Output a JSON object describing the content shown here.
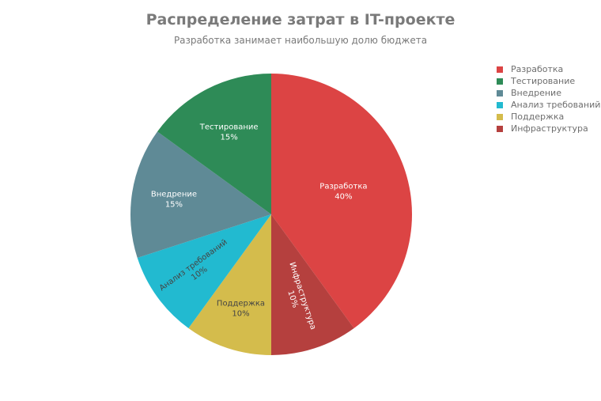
{
  "chart_data": {
    "type": "pie",
    "title": "Распределение затрат в IT-проекте",
    "subtitle": "Разработка занимает наибольшую долю бюджета",
    "legend_position": "top-right",
    "slices": [
      {
        "label": "Разработка",
        "value": 40,
        "percent_label": "40%",
        "color": "#dc4444",
        "text_color": "#ffffff"
      },
      {
        "label": "Инфраструктура",
        "value": 10,
        "percent_label": "10%",
        "color": "#b5403e",
        "text_color": "#ffffff"
      },
      {
        "label": "Поддержка",
        "value": 10,
        "percent_label": "10%",
        "color": "#d4bc4c",
        "text_color": "#444444"
      },
      {
        "label": "Анализ требований",
        "value": 10,
        "percent_label": "10%",
        "color": "#22bad0",
        "text_color": "#444444"
      },
      {
        "label": "Внедрение",
        "value": 15,
        "percent_label": "15%",
        "color": "#5f8a96",
        "text_color": "#ffffff"
      },
      {
        "label": "Тестирование",
        "value": 15,
        "percent_label": "15%",
        "color": "#2e8b57",
        "text_color": "#ffffff"
      }
    ],
    "legend": [
      {
        "label": "Разработка",
        "color": "#dc4444"
      },
      {
        "label": "Тестирование",
        "color": "#2e8b57"
      },
      {
        "label": "Внедрение",
        "color": "#5f8a96"
      },
      {
        "label": "Анализ требований",
        "color": "#22bad0"
      },
      {
        "label": "Поддержка",
        "color": "#d4bc4c"
      },
      {
        "label": "Инфраструктура",
        "color": "#b5403e"
      }
    ]
  }
}
